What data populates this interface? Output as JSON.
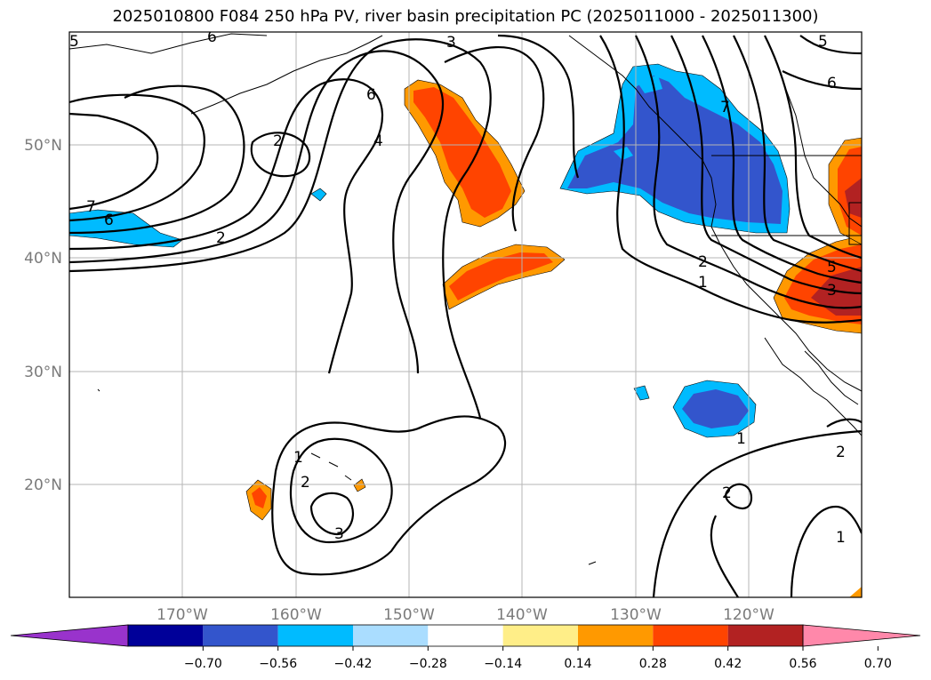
{
  "title": "2025010800 F084 250 hPa PV, river basin precipitation PC (2025011000 - 2025011300)",
  "lat_labels": [
    "50°N",
    "40°N",
    "30°N",
    "20°N"
  ],
  "lon_labels": [
    "170°W",
    "160°W",
    "150°W",
    "140°W",
    "130°W",
    "120°W"
  ],
  "colorbar": {
    "ticks": [
      "−0.70",
      "−0.56",
      "−0.42",
      "−0.28",
      "−0.14",
      "0.14",
      "0.28",
      "0.42",
      "0.56",
      "0.70"
    ],
    "colors": [
      "#9933cc",
      "#000099",
      "#3355cc",
      "#00bbff",
      "#aaddff",
      "#ffffff",
      "#ffee88",
      "#ff9900",
      "#ff4400",
      "#b22222",
      "#ff88aa"
    ]
  },
  "contour_labels": [
    "5",
    "6",
    "3",
    "6",
    "5",
    "6",
    "7",
    "2",
    "4",
    "7",
    "6",
    "2",
    "2",
    "5",
    "1",
    "3",
    "1",
    "2",
    "3",
    "1",
    "2",
    "2",
    "1"
  ],
  "fill_colors": {
    "pos_1": "#ffee88",
    "pos_2": "#ff9900",
    "pos_3": "#ff4400",
    "pos_4": "#b22222",
    "neg_1": "#aaddff",
    "neg_2": "#00bbff",
    "neg_3": "#3355cc",
    "neg_4": "#000099"
  }
}
